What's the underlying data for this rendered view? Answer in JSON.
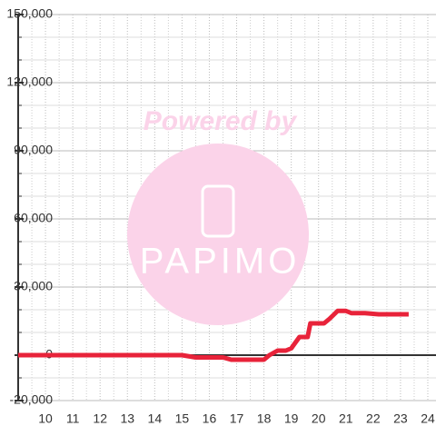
{
  "chart_data": {
    "type": "line",
    "watermark": [
      "Powered by",
      "PAPIMO"
    ],
    "x": [
      9,
      15,
      15.5,
      16.5,
      16.8,
      18,
      18.2,
      18.5,
      18.8,
      19,
      19.3,
      19.6,
      19.7,
      20.2,
      20.4,
      20.7,
      21,
      21.2,
      21.7,
      22.2,
      23.3
    ],
    "series": [
      {
        "color": "#e8233a",
        "values": [
          0,
          0,
          -1000,
          -1000,
          -2000,
          -2000,
          0,
          2000,
          2000,
          3000,
          8000,
          8000,
          14000,
          14000,
          16000,
          19500,
          19500,
          18500,
          18500,
          18000,
          18000
        ]
      }
    ],
    "xlim": [
      9,
      24.3
    ],
    "xticks": [
      10,
      11,
      12,
      13,
      14,
      15,
      16,
      17,
      18,
      19,
      20,
      21,
      22,
      23,
      24
    ],
    "ylim": [
      -20000,
      150000
    ],
    "yticks": [
      {
        "value": -20000,
        "label": "-20,000"
      },
      0,
      {
        "value": 30000,
        "label": "30,000"
      },
      {
        "value": 60000,
        "label": "60,000"
      },
      {
        "value": 90000,
        "label": "90,000"
      },
      {
        "value": 120000,
        "label": "120,000"
      },
      {
        "value": 150000,
        "label": "150,000"
      }
    ],
    "grid": true
  }
}
